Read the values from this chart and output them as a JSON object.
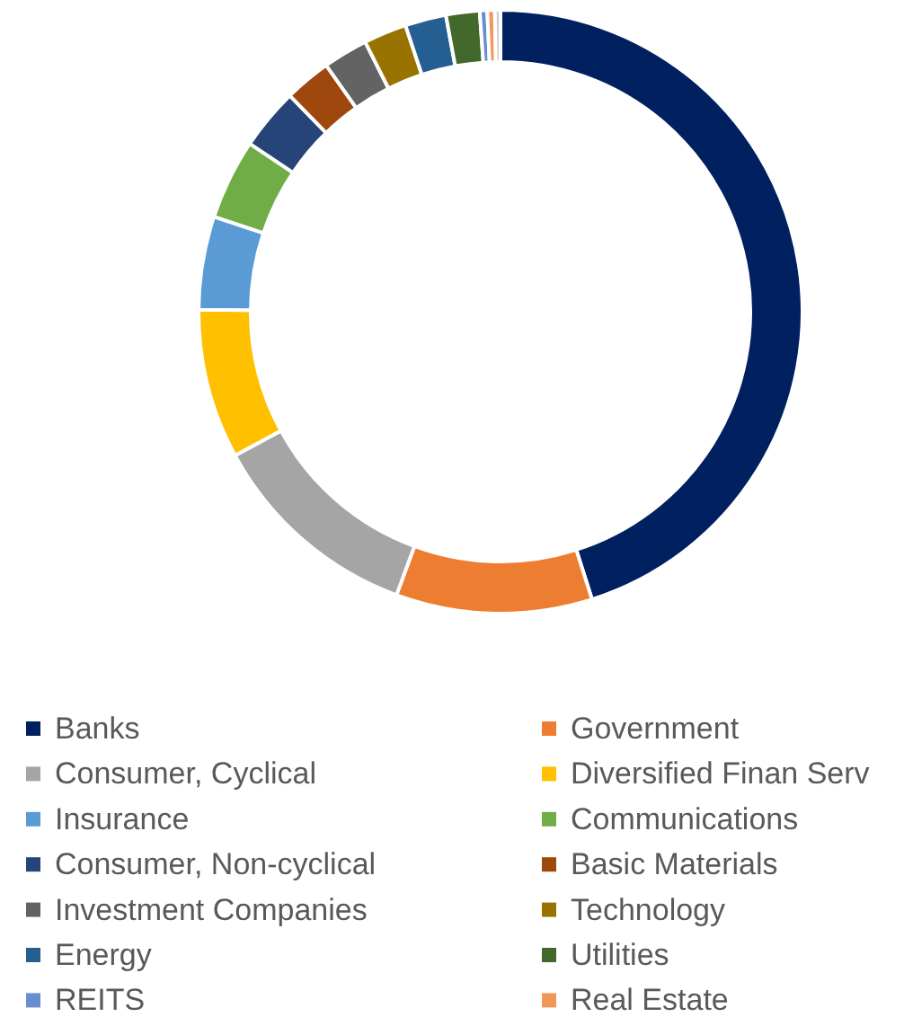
{
  "chart_data": {
    "type": "donut",
    "legend": "bottom",
    "categories": [
      "Banks",
      "Government",
      "Consumer, Cyclical",
      "Diversified Finan Serv",
      "Insurance",
      "Communications",
      "Consumer, Non-cyclical",
      "Basic Materials",
      "Investment Companies",
      "Technology",
      "Energy",
      "Utilities",
      "REITS",
      "Real Estate",
      null
    ],
    "values": [
      45.1,
      10.5,
      11.5,
      8,
      5,
      4.3,
      3.3,
      2.5,
      2.4,
      2.3,
      2.2,
      1.8,
      0.4,
      0.4,
      0.3
    ],
    "colors": [
      "#002060",
      "#ed7d31",
      "#a5a5a5",
      "#ffc000",
      "#5b9bd5",
      "#70ad47",
      "#264478",
      "#9e480e",
      "#636363",
      "#997300",
      "#255e91",
      "#43682b",
      "#698ed0",
      "#f1975a",
      "#cccccc"
    ]
  }
}
